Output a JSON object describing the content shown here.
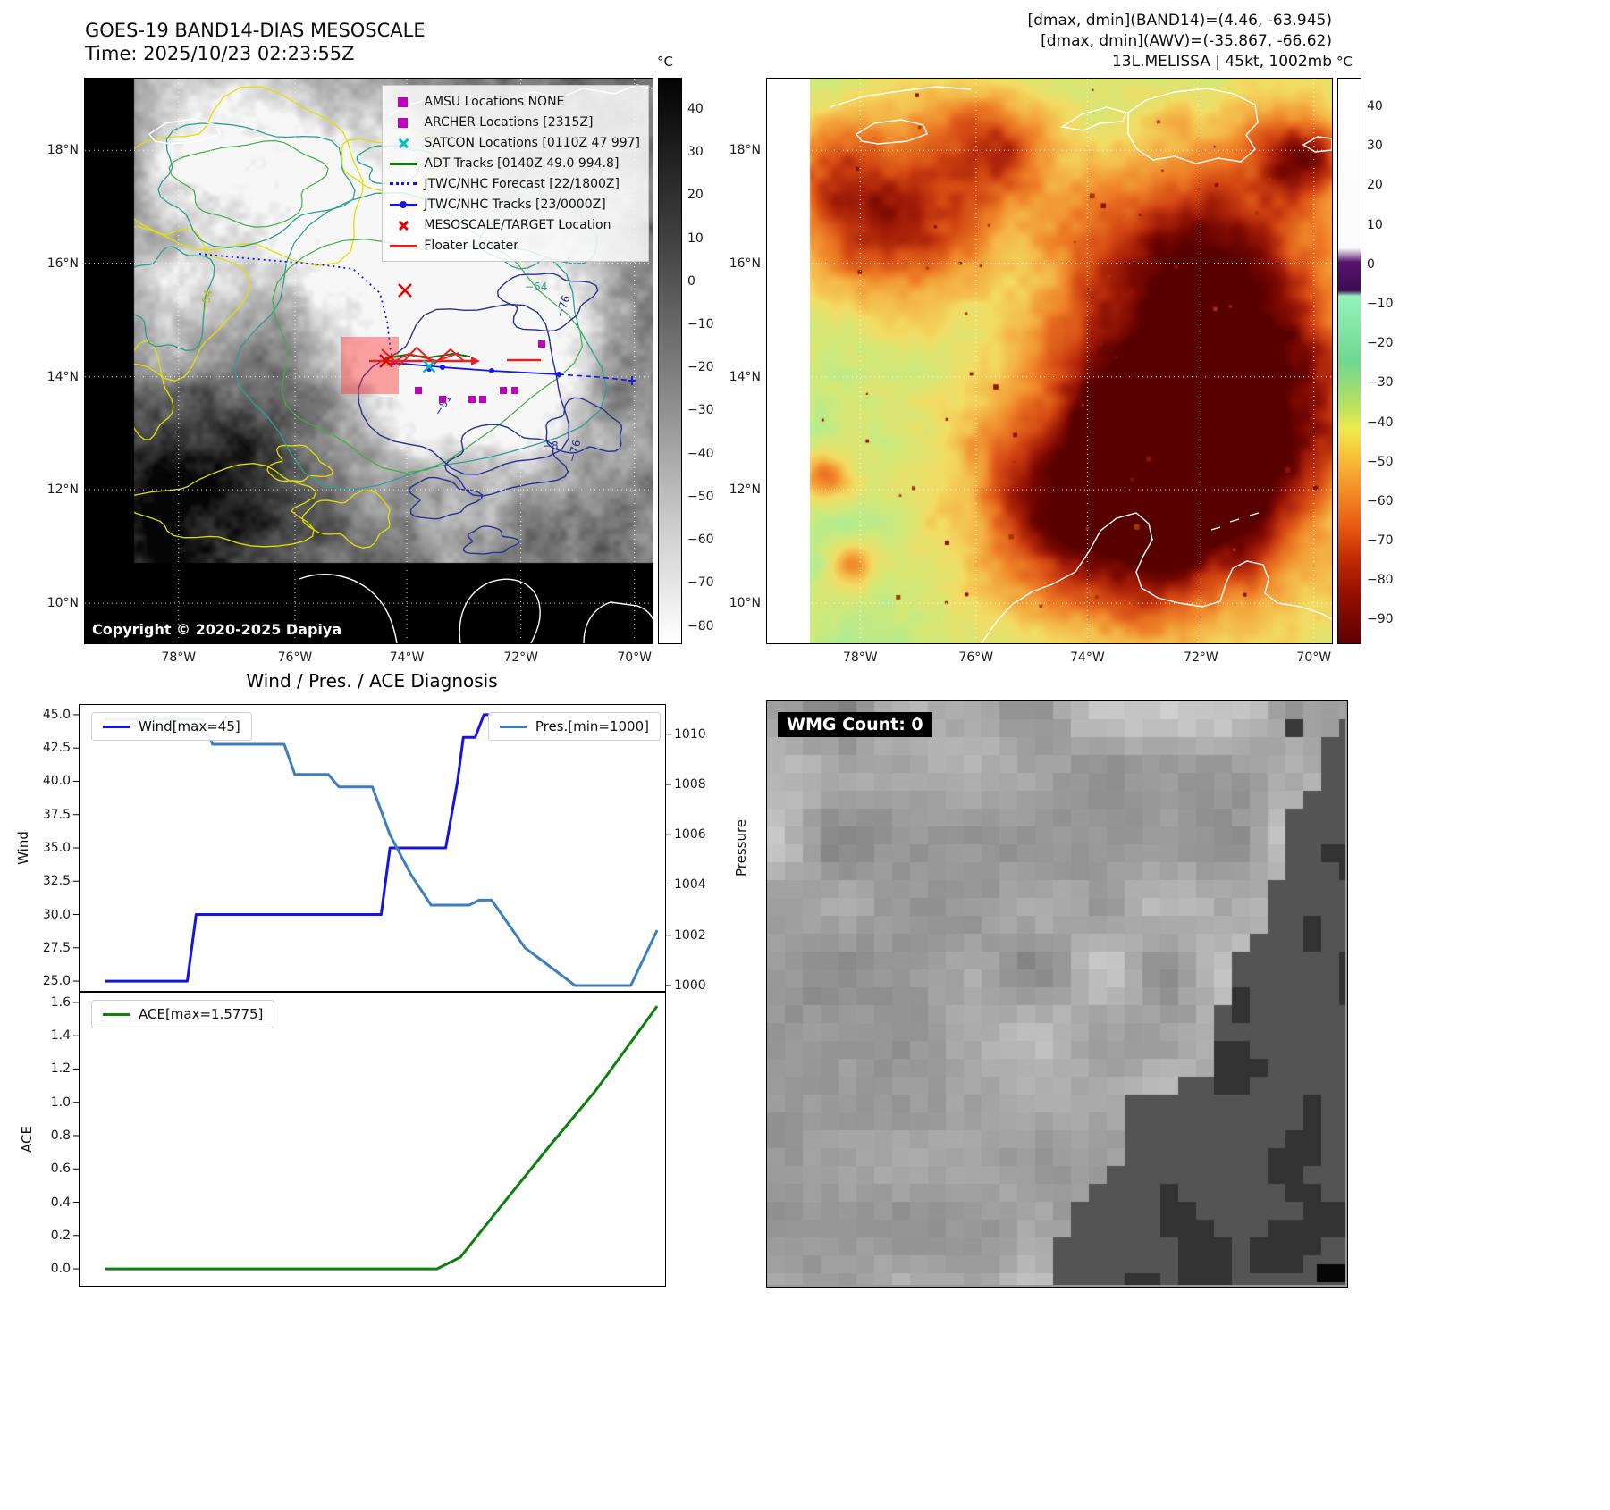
{
  "panel_ir": {
    "title": "GOES-19 BAND14-DIAS MESOSCALE",
    "subtitle": "Time: 2025/10/23 02:23:55Z",
    "copyright": "Copyright © 2020-2025 Dapiya",
    "colorbar_unit": "°C",
    "colorbar_ticks": [
      "40",
      "30",
      "20",
      "10",
      "0",
      "−10",
      "−20",
      "−30",
      "−40",
      "−50",
      "−60",
      "−70",
      "−80"
    ],
    "colorbar_gradient": [
      [
        "0",
        "#030303"
      ],
      [
        "0.28",
        "#3f3f3f"
      ],
      [
        "0.55",
        "#868686"
      ],
      [
        "0.80",
        "#cfcfcf"
      ],
      [
        "1",
        "#ffffff"
      ]
    ],
    "lat_ticks": [
      "18°N",
      "16°N",
      "14°N",
      "12°N",
      "10°N"
    ],
    "lon_ticks": [
      "78°W",
      "76°W",
      "74°W",
      "72°W",
      "70°W"
    ],
    "legend_items": [
      {
        "label": "AMSU Locations NONE",
        "marker": "square",
        "color": "#bf00bf"
      },
      {
        "label": "ARCHER Locations [2315Z]",
        "marker": "square",
        "color": "#bf00bf"
      },
      {
        "label": "SATCON Locations [0110Z 47 997]",
        "marker": "x",
        "color": "#00bfbf"
      },
      {
        "label": "ADT Tracks [0140Z 49.0 994.8]",
        "marker": "line",
        "color": "#0a7a0a"
      },
      {
        "label": "JTWC/NHC Forecast [22/1800Z]",
        "marker": "dotted",
        "color": "#1515e6"
      },
      {
        "label": "JTWC/NHC Tracks [23/0000Z]",
        "marker": "line-dot",
        "color": "#1515e6"
      },
      {
        "label": "MESOSCALE/TARGET Location",
        "marker": "x",
        "color": "#e60000"
      },
      {
        "label": "Floater Locater",
        "marker": "line",
        "color": "#e62020"
      }
    ],
    "contour_labels": [
      "−54",
      "−64",
      "−76",
      "−81",
      "−76",
      "−8"
    ]
  },
  "panel_awv": {
    "title_lines": [
      "[dmax, dmin](BAND14)=(4.46, -63.945)",
      "[dmax, dmin](AWV)=(-35.867, -66.62)",
      "13L.MELISSA | 45kt, 1002mb"
    ],
    "colorbar_unit": "°C",
    "colorbar_ticks": [
      "40",
      "30",
      "20",
      "10",
      "0",
      "−10",
      "−20",
      "−30",
      "−40",
      "−50",
      "−60",
      "−70",
      "−80",
      "−90"
    ],
    "colorbar_gradient": [
      [
        "0",
        "#ffffff"
      ],
      [
        "0.30",
        "#fbfbfb"
      ],
      [
        "0.325",
        "#58136e"
      ],
      [
        "0.375",
        "#3c0b55"
      ],
      [
        "0.385",
        "#96f2ba"
      ],
      [
        "0.50",
        "#6ed890"
      ],
      [
        "0.575",
        "#b6e062"
      ],
      [
        "0.62",
        "#eeea50"
      ],
      [
        "0.66",
        "#f6ca3a"
      ],
      [
        "0.72",
        "#f6942a"
      ],
      [
        "0.79",
        "#ea5c12"
      ],
      [
        "0.85",
        "#c22a02"
      ],
      [
        "0.91",
        "#980f00"
      ],
      [
        "1",
        "#5e0000"
      ]
    ],
    "lat_ticks": [
      "18°N",
      "16°N",
      "14°N",
      "12°N",
      "10°N"
    ],
    "lon_ticks": [
      "78°W",
      "76°W",
      "74°W",
      "72°W",
      "70°W"
    ]
  },
  "diagnosis": {
    "title": "Wind / Pres. / ACE Diagnosis"
  },
  "chart_data": [
    {
      "type": "line",
      "title": "Wind / Pres. / ACE Diagnosis",
      "left_axis": {
        "label": "Wind",
        "ticks": [
          "25.0",
          "27.5",
          "30.0",
          "32.5",
          "35.0",
          "37.5",
          "40.0",
          "42.5",
          "45.0"
        ],
        "range": [
          24.2,
          45.8
        ]
      },
      "right_axis": {
        "label": "Pressure",
        "ticks": [
          "1000",
          "1002",
          "1004",
          "1006",
          "1008",
          "1010"
        ],
        "range": [
          999.75,
          1011.2
        ]
      },
      "x_range": [
        0,
        1
      ],
      "grid": false,
      "series": [
        {
          "name": "Wind[max=45]",
          "color": "#1515e0",
          "axis": "left",
          "points": [
            [
              0.045,
              25
            ],
            [
              0.185,
              25
            ],
            [
              0.2,
              30
            ],
            [
              0.515,
              30
            ],
            [
              0.53,
              35
            ],
            [
              0.625,
              35
            ],
            [
              0.645,
              40
            ],
            [
              0.655,
              43.3
            ],
            [
              0.675,
              43.3
            ],
            [
              0.69,
              45
            ],
            [
              0.705,
              45
            ]
          ]
        },
        {
          "name": "Pres.[min=1000]",
          "color": "#3c7ebf",
          "axis": "right",
          "points": [
            [
              0.045,
              1010.6
            ],
            [
              0.21,
              1010.6
            ],
            [
              0.228,
              1009.6
            ],
            [
              0.35,
              1009.6
            ],
            [
              0.368,
              1008.4
            ],
            [
              0.425,
              1008.4
            ],
            [
              0.443,
              1007.9
            ],
            [
              0.5,
              1007.9
            ],
            [
              0.53,
              1006
            ],
            [
              0.566,
              1004.4
            ],
            [
              0.6,
              1003.2
            ],
            [
              0.665,
              1003.2
            ],
            [
              0.682,
              1003.4
            ],
            [
              0.703,
              1003.4
            ],
            [
              0.76,
              1001.5
            ],
            [
              0.8,
              1000.8
            ],
            [
              0.845,
              1000
            ],
            [
              0.94,
              1000
            ],
            [
              0.985,
              1002.2
            ]
          ]
        }
      ],
      "legend_position": [
        "upper left",
        "upper right"
      ]
    },
    {
      "type": "line",
      "left_axis": {
        "label": "ACE",
        "ticks": [
          "0.0",
          "0.2",
          "0.4",
          "0.6",
          "0.8",
          "1.0",
          "1.2",
          "1.4",
          "1.6"
        ],
        "range": [
          -0.107,
          1.664
        ]
      },
      "x_range": [
        0,
        1
      ],
      "grid": false,
      "series": [
        {
          "name": "ACE[max=1.5775]",
          "color": "#0d800d",
          "axis": "left",
          "points": [
            [
              0.045,
              0
            ],
            [
              0.61,
              0
            ],
            [
              0.65,
              0.07
            ],
            [
              0.72,
              0.38
            ],
            [
              0.8,
              0.73
            ],
            [
              0.88,
              1.07
            ],
            [
              0.985,
              1.5775
            ]
          ]
        }
      ],
      "legend_position": [
        "upper left"
      ]
    }
  ],
  "panel_wmg": {
    "label": "WMG Count: 0"
  }
}
